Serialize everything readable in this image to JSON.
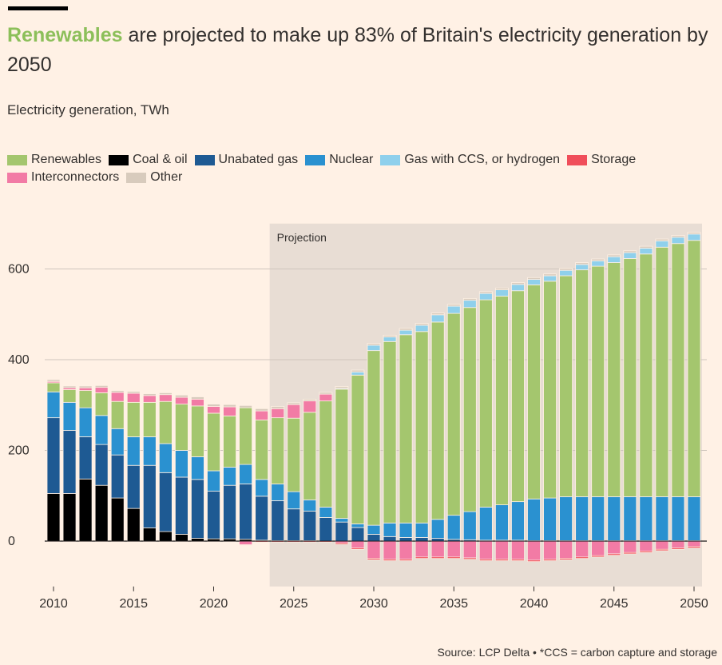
{
  "header": {
    "title_highlight": "Renewables",
    "title_rest": " are projected to make up 83% of Britain's electricity generation by 2050",
    "subtitle": "Electricity generation, TWh"
  },
  "footer": {
    "source": "Source: LCP Delta • *CCS = carbon capture and storage"
  },
  "colors": {
    "background": "#fff1e5",
    "projection_band": "#e8ddd4",
    "gridline": "#cfc5bd"
  },
  "chart_data": {
    "type": "bar",
    "stacked": true,
    "title": "Renewables are projected to make up 83% of Britain's electricity generation by 2050",
    "subtitle": "Electricity generation, TWh",
    "xlabel": "",
    "ylabel": "",
    "ylim": [
      -100,
      700
    ],
    "yticks": [
      0,
      200,
      400,
      600
    ],
    "xticks": [
      2010,
      2015,
      2020,
      2025,
      2030,
      2035,
      2040,
      2045,
      2050
    ],
    "grid": true,
    "legend_position": "top-left",
    "projection": {
      "label": "Projection",
      "from": 2023.5,
      "to": 2050.5
    },
    "categories": [
      2010,
      2011,
      2012,
      2013,
      2014,
      2015,
      2016,
      2017,
      2018,
      2019,
      2020,
      2021,
      2022,
      2023,
      2024,
      2025,
      2026,
      2027,
      2028,
      2029,
      2030,
      2031,
      2032,
      2033,
      2034,
      2035,
      2036,
      2037,
      2038,
      2039,
      2040,
      2041,
      2042,
      2043,
      2044,
      2045,
      2046,
      2047,
      2048,
      2049,
      2050
    ],
    "series": [
      {
        "name": "Coal & oil",
        "color": "#000000",
        "values": [
          105,
          105,
          137,
          123,
          95,
          72,
          29,
          21,
          15,
          6,
          5,
          5,
          4,
          2,
          1,
          1,
          1,
          0,
          0,
          0,
          0,
          0,
          0,
          0,
          0,
          0,
          0,
          0,
          0,
          0,
          0,
          0,
          0,
          0,
          0,
          0,
          0,
          0,
          0,
          0,
          0
        ]
      },
      {
        "name": "Unabated gas",
        "color": "#1e5a93",
        "values": [
          167,
          139,
          93,
          90,
          95,
          95,
          138,
          130,
          126,
          130,
          105,
          118,
          122,
          97,
          88,
          70,
          65,
          52,
          42,
          30,
          15,
          10,
          8,
          8,
          6,
          4,
          3,
          2,
          2,
          2,
          1,
          1,
          1,
          1,
          1,
          1,
          1,
          1,
          1,
          1,
          1
        ]
      },
      {
        "name": "Nuclear",
        "color": "#2a91d0",
        "values": [
          57,
          62,
          64,
          64,
          58,
          63,
          63,
          64,
          59,
          50,
          45,
          40,
          43,
          37,
          37,
          38,
          25,
          23,
          8,
          8,
          20,
          30,
          32,
          32,
          42,
          53,
          62,
          73,
          78,
          85,
          92,
          94,
          97,
          97,
          97,
          97,
          97,
          97,
          97,
          97,
          97
        ]
      },
      {
        "name": "Renewables",
        "color": "#a4c66e",
        "values": [
          20,
          28,
          38,
          50,
          60,
          76,
          76,
          93,
          102,
          112,
          127,
          113,
          125,
          131,
          146,
          162,
          193,
          234,
          285,
          328,
          385,
          400,
          415,
          422,
          435,
          445,
          450,
          457,
          460,
          465,
          472,
          478,
          487,
          500,
          508,
          516,
          525,
          535,
          550,
          558,
          565
        ]
      },
      {
        "name": "Gas with CCS, or hydrogen",
        "color": "#8fd0ec",
        "values": [
          0,
          0,
          0,
          0,
          0,
          0,
          0,
          0,
          0,
          0,
          0,
          0,
          0,
          0,
          0,
          0,
          0,
          0,
          2,
          7,
          12,
          10,
          10,
          14,
          16,
          16,
          16,
          14,
          14,
          14,
          12,
          12,
          12,
          12,
          12,
          13,
          13,
          13,
          14,
          14,
          14
        ]
      },
      {
        "name": "Other",
        "color": "#d8cbbd",
        "values": [
          4,
          4,
          4,
          4,
          4,
          4,
          4,
          4,
          5,
          5,
          5,
          5,
          5,
          5,
          5,
          4,
          4,
          4,
          4,
          4,
          4,
          4,
          4,
          4,
          4,
          4,
          4,
          4,
          4,
          4,
          4,
          4,
          4,
          4,
          4,
          4,
          4,
          4,
          4,
          4,
          4
        ]
      }
    ],
    "positive_extra": [
      {
        "name": "Interconnectors",
        "color": "#f27ba5",
        "position": "between-renewables-and-gas-ccs",
        "values": [
          3,
          4,
          6,
          12,
          20,
          20,
          15,
          15,
          15,
          15,
          15,
          20,
          -8,
          20,
          20,
          30,
          25,
          15,
          0,
          0,
          0,
          0,
          0,
          0,
          0,
          0,
          0,
          0,
          0,
          0,
          0,
          0,
          0,
          0,
          0,
          0,
          0,
          0,
          0,
          0,
          0
        ]
      }
    ],
    "negative_series": [
      {
        "name": "Interconnectors",
        "color": "#f27ba5",
        "values": [
          0,
          0,
          0,
          0,
          0,
          0,
          0,
          0,
          0,
          0,
          0,
          0,
          0,
          0,
          0,
          0,
          0,
          0,
          -4,
          -15,
          -38,
          -40,
          -40,
          -35,
          -35,
          -35,
          -37,
          -40,
          -40,
          -40,
          -42,
          -40,
          -38,
          -35,
          -32,
          -28,
          -25,
          -22,
          -18,
          -15,
          -12
        ]
      },
      {
        "name": "Storage",
        "color": "#f04e5a",
        "values": [
          -1,
          -1,
          -1,
          -1,
          -1,
          -1,
          -1,
          -1,
          -1,
          -1,
          -1,
          -1,
          -1,
          -2,
          -2,
          -2,
          -2,
          -2,
          -3,
          -3,
          -3,
          -3,
          -3,
          -3,
          -3,
          -3,
          -3,
          -3,
          -3,
          -3,
          -3,
          -3,
          -3,
          -3,
          -3,
          -3,
          -3,
          -3,
          -3,
          -3,
          -3
        ]
      }
    ],
    "legend": [
      {
        "name": "Renewables",
        "color": "#a4c66e"
      },
      {
        "name": "Coal & oil",
        "color": "#000000"
      },
      {
        "name": "Unabated gas",
        "color": "#1e5a93"
      },
      {
        "name": "Nuclear",
        "color": "#2a91d0"
      },
      {
        "name": "Gas with CCS, or hydrogen",
        "color": "#8fd0ec"
      },
      {
        "name": "Storage",
        "color": "#f04e5a"
      },
      {
        "name": "Interconnectors",
        "color": "#f27ba5"
      },
      {
        "name": "Other",
        "color": "#d8cbbd"
      }
    ]
  }
}
